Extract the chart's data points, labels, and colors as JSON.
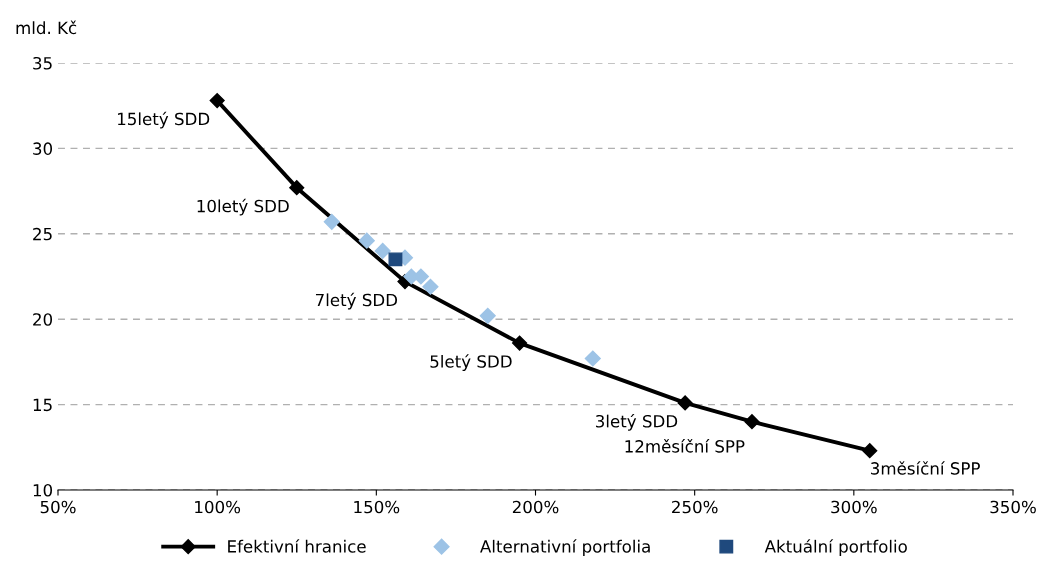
{
  "chart_data": {
    "type": "line",
    "ylabel": "mld. Kč",
    "xlim": [
      50,
      350
    ],
    "xticks": [
      {
        "value": 50,
        "label": "50%"
      },
      {
        "value": 100,
        "label": "100%"
      },
      {
        "value": 150,
        "label": "150%"
      },
      {
        "value": 200,
        "label": "200%"
      },
      {
        "value": 250,
        "label": "250%"
      },
      {
        "value": 300,
        "label": "300%"
      },
      {
        "value": 350,
        "label": "350%"
      }
    ],
    "ylim": [
      10,
      35
    ],
    "yticks": [
      10,
      15,
      20,
      25,
      30,
      35
    ],
    "grid": "y",
    "legend": "bottom",
    "series": [
      {
        "name": "Efektivní hranice",
        "color": "#000000",
        "marker": "diamond",
        "line_style": "solid",
        "x": [
          100,
          125,
          159,
          195,
          247,
          268,
          305
        ],
        "values": [
          32.8,
          27.7,
          22.2,
          18.6,
          15.1,
          14.0,
          12.3
        ]
      },
      {
        "name": "Alternativní portfolia",
        "type": "scatter",
        "color": "#9dc3e6",
        "marker": "diamond",
        "x": [
          136,
          147,
          152,
          159,
          161,
          164,
          167,
          185,
          218
        ],
        "values": [
          25.7,
          24.6,
          24.0,
          23.6,
          22.5,
          22.5,
          21.9,
          20.2,
          17.7
        ]
      },
      {
        "name": "Aktuální portfolio",
        "type": "scatter",
        "color": "#1f497d",
        "marker": "square",
        "x": [
          156
        ],
        "values": [
          23.5
        ]
      }
    ],
    "annotations": [
      {
        "text": "15letý SDD",
        "x": 100,
        "y": 32.8
      },
      {
        "text": "10letý SDD",
        "x": 125,
        "y": 27.7
      },
      {
        "text": "7letý SDD",
        "x": 159,
        "y": 22.2
      },
      {
        "text": "5letý SDD",
        "x": 195,
        "y": 18.6
      },
      {
        "text": "3letý SDD",
        "x": 247,
        "y": 15.1
      },
      {
        "text": "12měsíční SPP",
        "x": 268,
        "y": 14.0
      },
      {
        "text": "3měsíční SPP",
        "x": 305,
        "y": 12.3
      }
    ]
  }
}
